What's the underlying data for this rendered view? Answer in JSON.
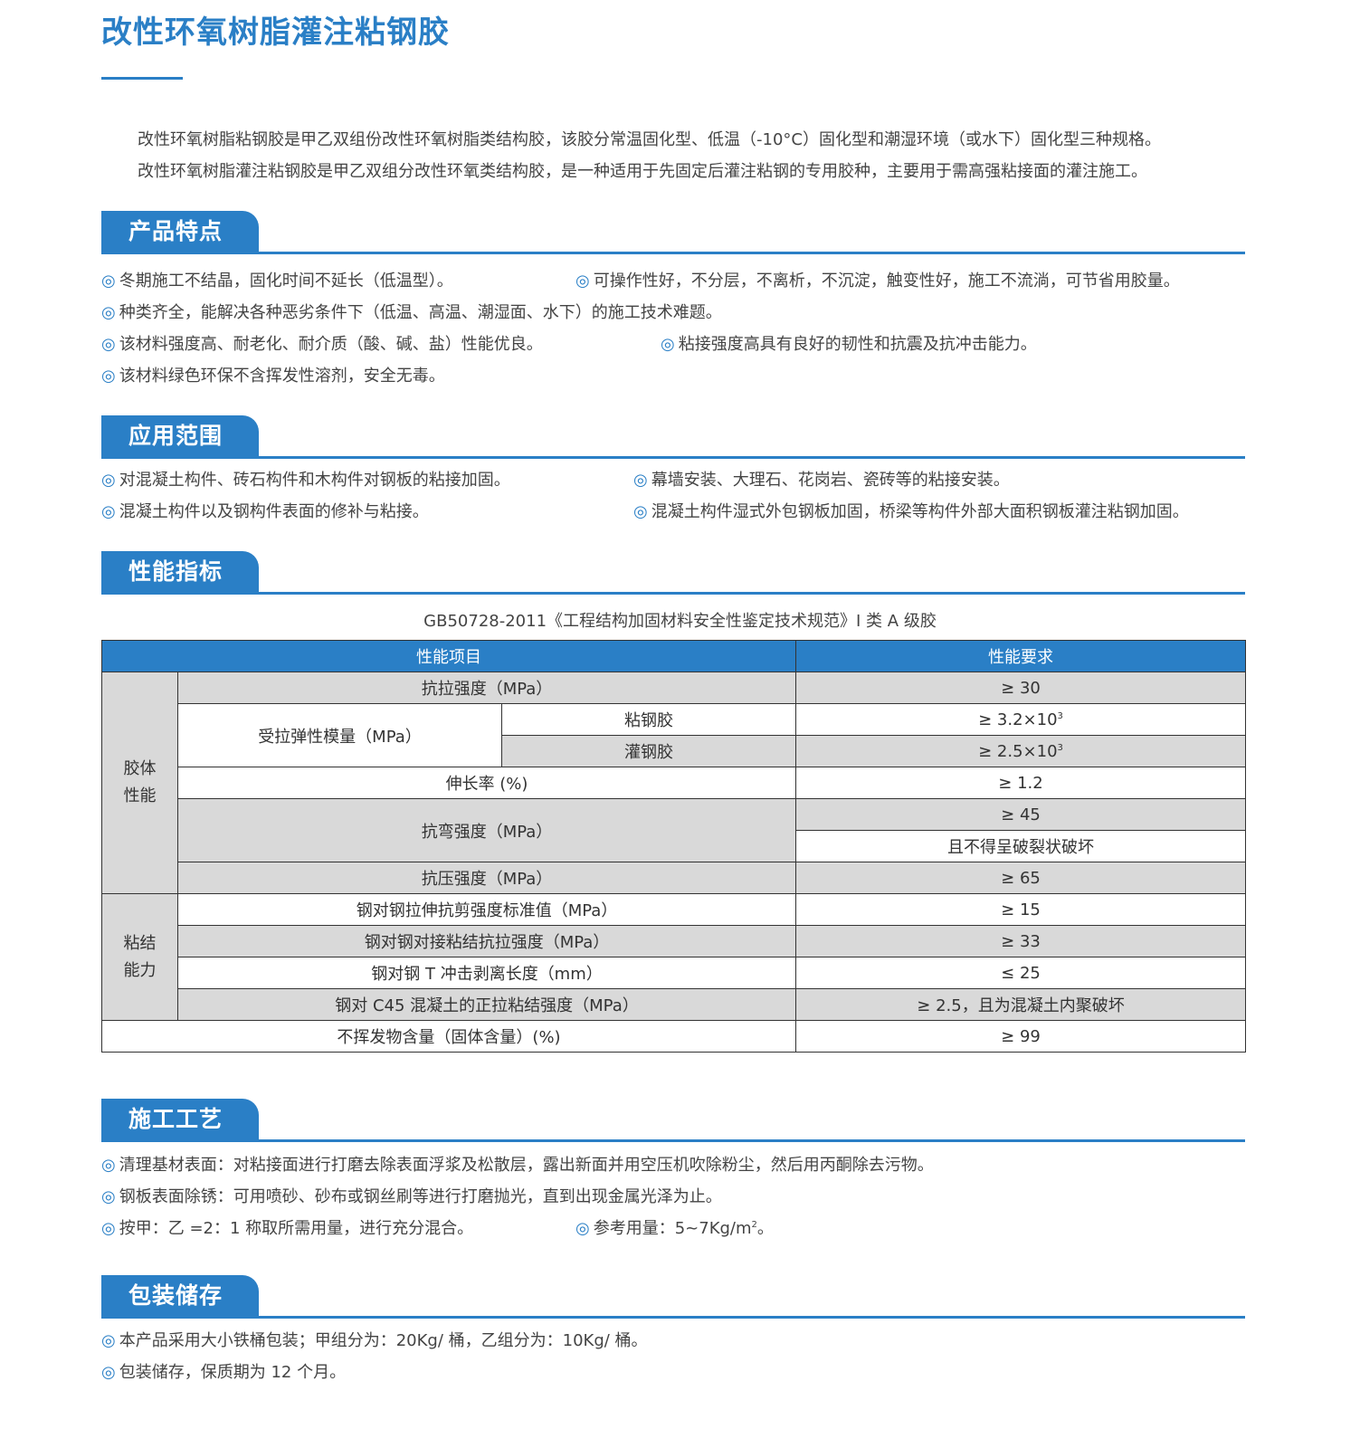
{
  "title": "改性环氧树脂灌注粘钢胶",
  "intro": [
    "改性环氧树脂粘钢胶是甲乙双组份改性环氧树脂类结构胶，该胶分常温固化型、低温（-10°C）固化型和潮湿环境（或水下）固化型三种规格。",
    "改性环氧树脂灌注粘钢胶是甲乙双组分改性环氧类结构胶，是一种适用于先固定后灌注粘钢的专用胶种，主要用于需高强粘接面的灌注施工。"
  ],
  "bullet_icon": "double-circle-icon",
  "bullet": "◎",
  "colors": {
    "accent": "#2a7fc6",
    "table_shade": "#d9d9d9"
  },
  "sections": [
    {
      "heading": "产品特点",
      "rows": [
        [
          "冬期施工不结晶，固化时间不延长（低温型）。",
          "可操作性好，不分层，不离析，不沉淀，触变性好，施工不流淌，可节省用胶量。"
        ],
        [
          "种类齐全，能解决各种恶劣条件下（低温、高温、潮湿面、水下）的施工技术难题。"
        ],
        [
          "该材料强度高、耐老化、耐介质（酸、碱、盐）性能优良。",
          "粘接强度高具有良好的韧性和抗震及抗冲击能力。"
        ],
        [
          "该材料绿色环保不含挥发性溶剂，安全无毒。"
        ]
      ]
    },
    {
      "heading": "应用范围",
      "rows": [
        [
          "对混凝土构件、砖石构件和木构件对钢板的粘接加固。",
          "幕墙安装、大理石、花岗岩、瓷砖等的粘接安装。"
        ],
        [
          "混凝土构件以及钢构件表面的修补与粘接。",
          "混凝土构件湿式外包钢板加固，桥梁等构件外部大面积钢板灌注粘钢加固。"
        ]
      ]
    },
    {
      "heading": "性能指标",
      "rows": []
    },
    {
      "heading": "施工工艺",
      "rows": [
        [
          "清理基材表面：对粘接面进行打磨去除表面浮浆及松散层，露出新面并用空压机吹除粉尘，然后用丙酮除去污物。"
        ],
        [
          "钢板表面除锈：可用喷砂、砂布或钢丝刷等进行打磨抛光，直到出现金属光泽为止。"
        ],
        [
          "按甲：乙 =2：1 称取所需用量，进行充分混合。",
          "参考用量：5~7Kg/m"
        ]
      ],
      "usage_sup": "2",
      "usage_end": "。"
    },
    {
      "heading": "包装储存",
      "rows": [
        [
          "本产品采用大小铁桶包装；甲组分为：20Kg/ 桶，乙组分为：10Kg/ 桶。"
        ],
        [
          "包装储存，保质期为 12 个月。"
        ]
      ]
    }
  ],
  "table": {
    "caption": "GB50728-2011《工程结构加固材料安全性鉴定技术规范》I 类 A 级胶",
    "headers": [
      "性能项目",
      "性能要求"
    ],
    "group1": "胶体\n性能",
    "group2": "粘结\n能力",
    "r1": {
      "item": "抗拉强度（MPa）",
      "req": "≥ 30"
    },
    "r2": {
      "item": "受拉弹性模量（MPa）",
      "sub1": "粘钢胶",
      "req1": "≥ 3.2×10",
      "sup1": "3",
      "sub2": "灌钢胶",
      "req2": "≥ 2.5×10",
      "sup2": "3"
    },
    "r4": {
      "item": "伸长率 (%)",
      "req": "≥ 1.2"
    },
    "r5": {
      "item": "抗弯强度（MPa）",
      "req1": "≥ 45",
      "req2": "且不得呈破裂状破坏"
    },
    "r7": {
      "item": "抗压强度（MPa）",
      "req": "≥ 65"
    },
    "r8": {
      "item": "钢对钢拉伸抗剪强度标准值（MPa）",
      "req": "≥ 15"
    },
    "r9": {
      "item": "钢对钢对接粘结抗拉强度（MPa）",
      "req": "≥ 33"
    },
    "r10": {
      "item": "钢对钢 T 冲击剥离长度（mm）",
      "req": "≤ 25"
    },
    "r11": {
      "item": "钢对 C45 混凝土的正拉粘结强度（MPa）",
      "req": "≥ 2.5，且为混凝土内聚破坏"
    },
    "r12": {
      "item": "不挥发物含量（固体含量）(%)",
      "req": "≥ 99"
    }
  }
}
